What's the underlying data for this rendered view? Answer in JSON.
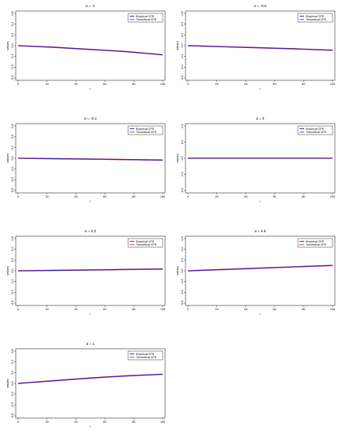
{
  "figure": {
    "series_colors": {
      "Empirical CPE": "#1f1fbf",
      "Theoretical CPE": "#d4203a"
    }
  },
  "chart_data": [
    {
      "type": "line",
      "title": "α = -1",
      "xlabel": "r",
      "ylabel": "values",
      "xlim": [
        0,
        100
      ],
      "ylim": [
        -0.6,
        0.6
      ],
      "xticks": [
        0,
        20,
        40,
        60,
        80,
        100
      ],
      "yticks": [
        -0.6,
        -0.4,
        -0.2,
        0.0,
        0.2,
        0.4,
        0.6
      ],
      "legend": "top-right",
      "grid": false,
      "x": [
        0,
        25,
        50,
        75,
        100
      ],
      "series": [
        {
          "name": "Empirical CPE",
          "values": [
            0.0,
            -0.03,
            -0.07,
            -0.11,
            -0.17
          ]
        },
        {
          "name": "Theoretical CPE",
          "values": [
            0.0,
            -0.03,
            -0.07,
            -0.11,
            -0.17
          ]
        }
      ]
    },
    {
      "type": "line",
      "title": "α = -0.5",
      "xlabel": "r",
      "ylabel": "values",
      "xlim": [
        0,
        100
      ],
      "ylim": [
        -0.6,
        0.6
      ],
      "xticks": [
        0,
        20,
        40,
        60,
        80,
        100
      ],
      "yticks": [
        -0.6,
        -0.4,
        -0.2,
        0.0,
        0.2,
        0.4,
        0.6
      ],
      "legend": "top-right",
      "grid": false,
      "x": [
        0,
        25,
        50,
        75,
        100
      ],
      "series": [
        {
          "name": "Empirical CPE",
          "values": [
            0.0,
            -0.02,
            -0.04,
            -0.06,
            -0.085
          ]
        },
        {
          "name": "Theoretical CPE",
          "values": [
            0.0,
            -0.02,
            -0.04,
            -0.06,
            -0.085
          ]
        }
      ]
    },
    {
      "type": "line",
      "title": "α = -0.2",
      "xlabel": "r",
      "ylabel": "values",
      "xlim": [
        0,
        100
      ],
      "ylim": [
        -0.6,
        0.6
      ],
      "xticks": [
        0,
        20,
        40,
        60,
        80,
        100
      ],
      "yticks": [
        -0.6,
        -0.4,
        -0.2,
        0.0,
        0.2,
        0.4,
        0.6
      ],
      "legend": "top-right",
      "grid": false,
      "x": [
        0,
        25,
        50,
        75,
        100
      ],
      "series": [
        {
          "name": "Empirical CPE",
          "values": [
            0.0,
            -0.008,
            -0.016,
            -0.024,
            -0.034
          ]
        },
        {
          "name": "Theoretical CPE",
          "values": [
            0.0,
            -0.008,
            -0.016,
            -0.024,
            -0.034
          ]
        }
      ]
    },
    {
      "type": "line",
      "title": "α = 0",
      "xlabel": "r",
      "ylabel": "values",
      "xlim": [
        0,
        100
      ],
      "ylim": [
        -0.4,
        0.4
      ],
      "xticks": [
        0,
        20,
        40,
        60,
        80,
        100
      ],
      "yticks": [
        -0.4,
        -0.2,
        0.0,
        0.2,
        0.4
      ],
      "legend": "top-right",
      "grid": false,
      "x": [
        0,
        25,
        50,
        75,
        100
      ],
      "series": [
        {
          "name": "Empirical CPE",
          "values": [
            0.0,
            0.0,
            0.0,
            0.0,
            0.0
          ]
        },
        {
          "name": "Theoretical CPE",
          "values": [
            0.0,
            0.0,
            0.0,
            0.0,
            0.0
          ]
        }
      ]
    },
    {
      "type": "line",
      "title": "α = 0.2",
      "xlabel": "r",
      "ylabel": "values",
      "xlim": [
        0,
        100
      ],
      "ylim": [
        -0.6,
        0.6
      ],
      "xticks": [
        0,
        20,
        40,
        60,
        80,
        100
      ],
      "yticks": [
        -0.6,
        -0.4,
        -0.2,
        0.0,
        0.2,
        0.4,
        0.6
      ],
      "legend": "top-right",
      "grid": false,
      "x": [
        0,
        25,
        50,
        75,
        100
      ],
      "series": [
        {
          "name": "Empirical CPE",
          "values": [
            0.0,
            0.008,
            0.016,
            0.024,
            0.034
          ]
        },
        {
          "name": "Theoretical CPE",
          "values": [
            0.0,
            0.008,
            0.016,
            0.024,
            0.034
          ]
        }
      ]
    },
    {
      "type": "line",
      "title": "α = 0.5",
      "xlabel": "r",
      "ylabel": "values",
      "xlim": [
        0,
        100
      ],
      "ylim": [
        -0.6,
        0.6
      ],
      "xticks": [
        0,
        20,
        40,
        60,
        80,
        100
      ],
      "yticks": [
        -0.6,
        -0.4,
        -0.2,
        0.0,
        0.2,
        0.4,
        0.6
      ],
      "legend": "top-right",
      "grid": false,
      "x": [
        0,
        25,
        50,
        75,
        100
      ],
      "series": [
        {
          "name": "Empirical CPE",
          "values": [
            0.0,
            0.025,
            0.05,
            0.075,
            0.1
          ]
        },
        {
          "name": "Theoretical CPE",
          "values": [
            0.0,
            0.025,
            0.05,
            0.075,
            0.1
          ]
        }
      ]
    },
    {
      "type": "line",
      "title": "α = 1",
      "xlabel": "r",
      "ylabel": "values",
      "xlim": [
        0,
        100
      ],
      "ylim": [
        -0.6,
        0.6
      ],
      "xticks": [
        0,
        20,
        40,
        60,
        80,
        100
      ],
      "yticks": [
        -0.6,
        -0.4,
        -0.2,
        0.0,
        0.2,
        0.4,
        0.6
      ],
      "legend": "top-right",
      "grid": false,
      "x": [
        0,
        25,
        50,
        75,
        100
      ],
      "series": [
        {
          "name": "Empirical CPE",
          "values": [
            0.0,
            0.05,
            0.1,
            0.14,
            0.17
          ]
        },
        {
          "name": "Theoretical CPE",
          "values": [
            0.0,
            0.05,
            0.1,
            0.14,
            0.17
          ]
        }
      ]
    }
  ]
}
